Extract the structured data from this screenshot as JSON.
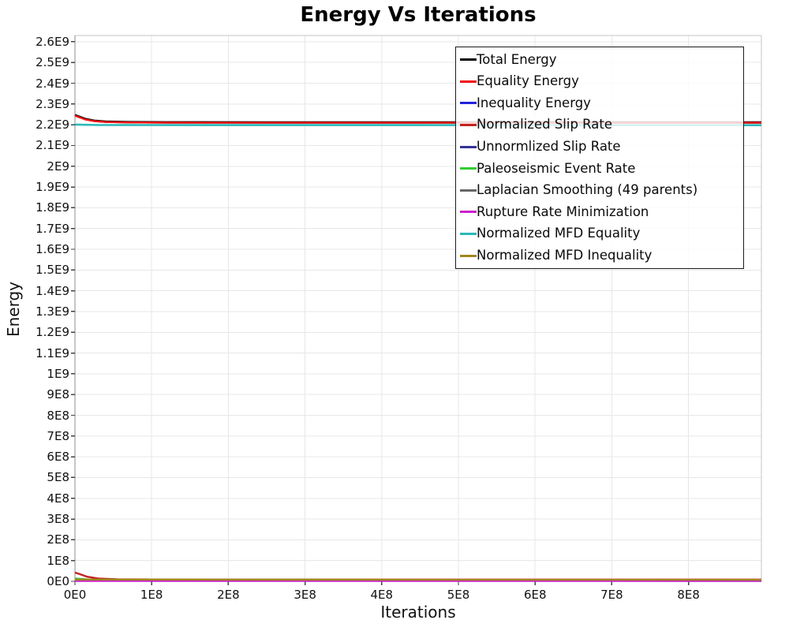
{
  "title": "Energy Vs Iterations",
  "chart_data": {
    "type": "line",
    "title": "Energy Vs Iterations",
    "xlabel": "Iterations",
    "ylabel": "Energy",
    "xlim": [
      0,
      895000000
    ],
    "ylim": [
      0,
      2630000000
    ],
    "grid": true,
    "legend_position": "top-right-inside",
    "x_ticks": {
      "values": [
        0,
        100000000.0,
        200000000.0,
        300000000.0,
        400000000.0,
        500000000.0,
        600000000.0,
        700000000.0,
        800000000.0
      ],
      "labels": [
        "0E0",
        "1E8",
        "2E8",
        "3E8",
        "4E8",
        "5E8",
        "6E8",
        "7E8",
        "8E8"
      ]
    },
    "y_ticks": {
      "values": [
        0,
        100000000.0,
        200000000.0,
        300000000.0,
        400000000.0,
        500000000.0,
        600000000.0,
        700000000.0,
        800000000.0,
        900000000.0,
        1000000000.0,
        1100000000.0,
        1200000000.0,
        1300000000.0,
        1400000000.0,
        1500000000.0,
        1600000000.0,
        1700000000.0,
        1800000000.0,
        1900000000.0,
        2000000000.0,
        2100000000.0,
        2200000000.0,
        2300000000.0,
        2400000000.0,
        2500000000.0,
        2600000000.0
      ],
      "labels": [
        "0E0",
        "1E8",
        "2E8",
        "3E8",
        "4E8",
        "5E8",
        "6E8",
        "7E8",
        "8E8",
        "9E8",
        "1E9",
        "1.1E9",
        "1.2E9",
        "1.3E9",
        "1.4E9",
        "1.5E9",
        "1.6E9",
        "1.7E9",
        "1.8E9",
        "1.9E9",
        "2E9",
        "2.1E9",
        "2.2E9",
        "2.3E9",
        "2.4E9",
        "2.5E9",
        "2.6E9"
      ]
    },
    "series": [
      {
        "name": "Total Energy",
        "color": "#000000",
        "width": 3,
        "points": [
          [
            0,
            2246000000.0
          ],
          [
            6000000.0,
            2238000000.0
          ],
          [
            14000000.0,
            2227000000.0
          ],
          [
            25000000.0,
            2219000000.0
          ],
          [
            40000000.0,
            2214500000.0
          ],
          [
            70000000.0,
            2212500000.0
          ],
          [
            120000000.0,
            2211500000.0
          ],
          [
            250000000.0,
            2211000000.0
          ],
          [
            895000000.0,
            2211000000.0
          ]
        ]
      },
      {
        "name": "Equality Energy",
        "color": "#ee1111",
        "width": 2.4,
        "points": [
          [
            0,
            2244000000.0
          ],
          [
            6000000.0,
            2236000000.0
          ],
          [
            14000000.0,
            2225000000.0
          ],
          [
            25000000.0,
            2217500000.0
          ],
          [
            40000000.0,
            2213000000.0
          ],
          [
            70000000.0,
            2211000000.0
          ],
          [
            120000000.0,
            2210000000.0
          ],
          [
            250000000.0,
            2209500000.0
          ],
          [
            895000000.0,
            2209500000.0
          ]
        ]
      },
      {
        "name": "Inequality Energy",
        "color": "#2222dd",
        "width": 2.4,
        "points": [
          [
            0,
            3000000.0
          ],
          [
            895000000.0,
            2200000.0
          ]
        ]
      },
      {
        "name": "Normalized Slip Rate",
        "color": "#c22222",
        "width": 2.4,
        "points": [
          [
            0,
            42000000.0
          ],
          [
            7000000.0,
            34000000.0
          ],
          [
            16000000.0,
            22000000.0
          ],
          [
            30000000.0,
            13500000.0
          ],
          [
            55000000.0,
            10000000.0
          ],
          [
            100000000.0,
            8800000.0
          ],
          [
            180000000.0,
            8400000.0
          ],
          [
            895000000.0,
            8400000.0
          ]
        ]
      },
      {
        "name": "Unnormlized Slip Rate",
        "color": "#333399",
        "width": 2.4,
        "points": [
          [
            0,
            4500000.0
          ],
          [
            895000000.0,
            3600000.0
          ]
        ]
      },
      {
        "name": "Paleoseismic Event Rate",
        "color": "#33cc33",
        "width": 2.4,
        "points": [
          [
            0,
            13500000.0
          ],
          [
            10000000.0,
            10500000.0
          ],
          [
            25000000.0,
            7200000.0
          ],
          [
            60000000.0,
            5900000.0
          ],
          [
            895000000.0,
            5600000.0
          ]
        ]
      },
      {
        "name": "Laplacian Smoothing (49 parents)",
        "color": "#666666",
        "width": 2.4,
        "points": [
          [
            0,
            7200000.0
          ],
          [
            895000000.0,
            6600000.0
          ]
        ]
      },
      {
        "name": "Rupture Rate Minimization",
        "color": "#cc22cc",
        "width": 2.4,
        "points": [
          [
            0,
            2000000.0
          ],
          [
            895000000.0,
            1400000.0
          ]
        ]
      },
      {
        "name": "Normalized MFD Equality",
        "color": "#2bb8b8",
        "width": 2.6,
        "points": [
          [
            0,
            2201000000.0
          ],
          [
            30000000.0,
            2198500000.0
          ],
          [
            895000000.0,
            2198000000.0
          ]
        ]
      },
      {
        "name": "Normalized MFD Inequality",
        "color": "#a1861e",
        "width": 2.4,
        "points": [
          [
            0,
            8200000.0
          ],
          [
            895000000.0,
            7600000.0
          ]
        ]
      }
    ],
    "colors": {
      "grid": "#e7e7e7",
      "plot_border": "#c6c6c6",
      "axis_spine": "#8c8c8c",
      "tick_mark": "#444444",
      "legend_border": "#1a1a1a"
    }
  }
}
